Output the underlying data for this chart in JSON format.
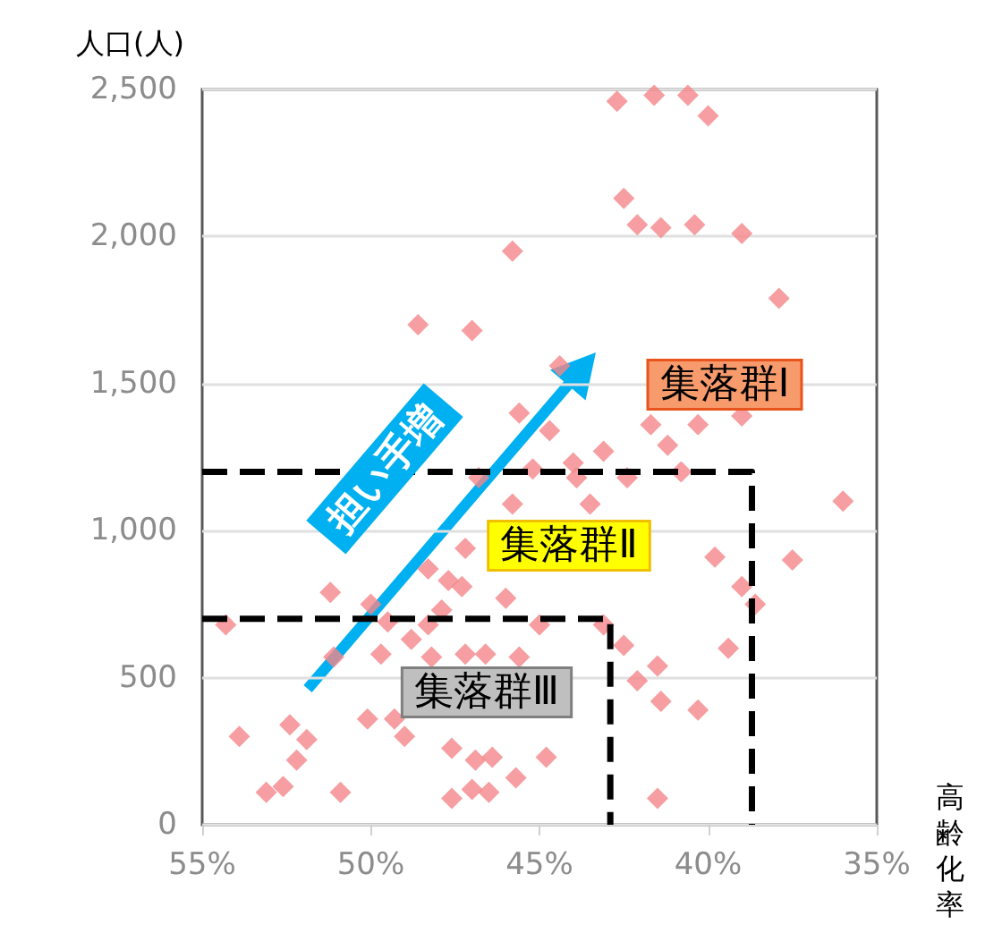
{
  "chart_data": {
    "type": "scatter",
    "xlabel": "高齢化率",
    "ylabel": "人口(人)",
    "xlim": [
      55,
      35
    ],
    "xticks": [
      {
        "value": 55,
        "label": "55%"
      },
      {
        "value": 50,
        "label": "50%"
      },
      {
        "value": 45,
        "label": "45%"
      },
      {
        "value": 40,
        "label": "40%"
      },
      {
        "value": 35,
        "label": "35%"
      }
    ],
    "ylim": [
      0,
      2500
    ],
    "yticks": [
      0,
      500,
      {
        "value": 1000,
        "label": "1,000"
      },
      {
        "value": 1500,
        "label": "1,500"
      },
      {
        "value": 2000,
        "label": "2,000"
      },
      {
        "value": 2500,
        "label": "2,500"
      }
    ],
    "grid": "y",
    "marker": "diamond",
    "series": [
      {
        "color": "#f4868a",
        "x": [
          42.7,
          41.6,
          40.6,
          40.0,
          45.8,
          48.6,
          47.0,
          42.5,
          42.1,
          41.4,
          40.4,
          39.0,
          37.9,
          44.4,
          45.6,
          44.7,
          44.0,
          43.1,
          41.7,
          41.2,
          40.3,
          39.0,
          36.0,
          45.2,
          43.9,
          42.4,
          40.8,
          43.5,
          39.8,
          37.5,
          39.0,
          38.6,
          39.4,
          43.1,
          42.5,
          41.5,
          42.1,
          41.4,
          40.3,
          44.8,
          41.5,
          45.8,
          46.8,
          47.2,
          48.3,
          47.7,
          47.3,
          46.0,
          51.2,
          50.0,
          49.5,
          48.3,
          54.3,
          48.8,
          47.9,
          51.1,
          49.7,
          48.2,
          47.2,
          46.6,
          45.6,
          45.0,
          50.1,
          49.0,
          49.3,
          53.9,
          52.4,
          51.9,
          52.2,
          47.6,
          46.9,
          46.4,
          45.7,
          52.6,
          53.1,
          50.9,
          47.6,
          47.0,
          46.5
        ],
        "values": [
          2460,
          2480,
          2480,
          2410,
          1950,
          1700,
          1680,
          2130,
          2040,
          2030,
          2040,
          2010,
          1790,
          1560,
          1400,
          1340,
          1230,
          1270,
          1360,
          1290,
          1360,
          1390,
          1100,
          1210,
          1180,
          1180,
          1200,
          1090,
          910,
          900,
          810,
          750,
          600,
          680,
          610,
          540,
          490,
          420,
          390,
          230,
          90,
          1090,
          1180,
          940,
          870,
          830,
          810,
          770,
          790,
          750,
          690,
          680,
          680,
          630,
          730,
          570,
          580,
          570,
          580,
          580,
          570,
          680,
          360,
          300,
          360,
          300,
          340,
          290,
          220,
          260,
          220,
          230,
          160,
          130,
          110,
          110,
          90,
          120,
          110
        ]
      },
      {
        "type": "line",
        "color": "#000000",
        "line_style": "dashed",
        "marker": "none",
        "x": [
          55,
          38.7,
          38.7
        ],
        "values": [
          1200,
          1200,
          0
        ]
      },
      {
        "type": "line",
        "color": "#000000",
        "line_style": "dashed",
        "marker": "none",
        "x": [
          55,
          42.9,
          42.9
        ],
        "values": [
          700,
          700,
          0
        ]
      }
    ],
    "annotations": [
      "集落群Ⅰ",
      "集落群Ⅱ",
      "集落群Ⅲ",
      "担い手増"
    ]
  }
}
